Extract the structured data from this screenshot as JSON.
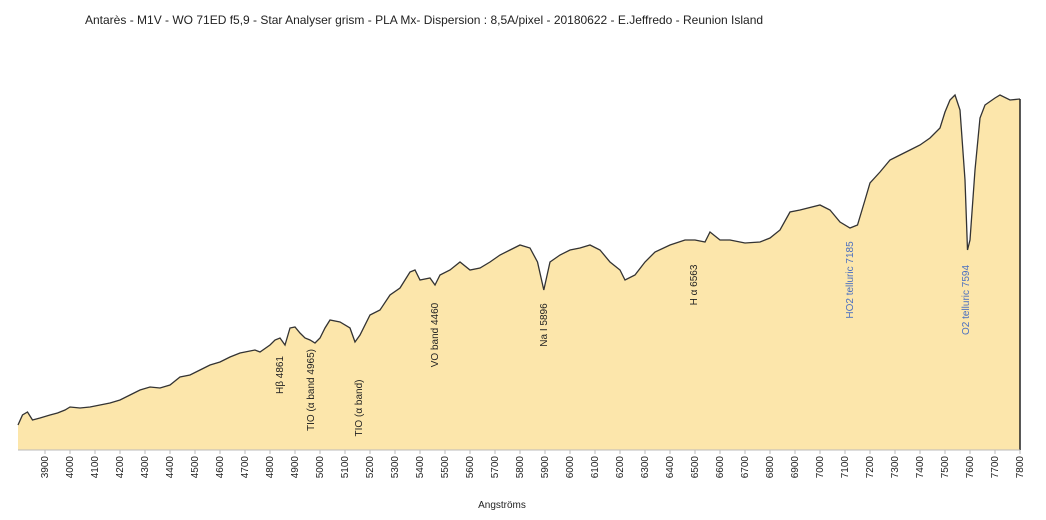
{
  "chart_data": {
    "type": "area",
    "title": "Antarès - M1V - WO 71ED  f5,9 - Star Analyser grism - PLA Mx- Dispersion : 8,5A/pixel - 20180622 - E.Jeffredo - Reunion Island",
    "x_label": "Angströms",
    "fill": "#fce6ab",
    "line_color": "#333333",
    "x": [
      3792,
      3810,
      3830,
      3850,
      3880,
      3920,
      3950,
      3980,
      4000,
      4040,
      4080,
      4120,
      4160,
      4200,
      4240,
      4280,
      4320,
      4360,
      4400,
      4440,
      4480,
      4520,
      4560,
      4600,
      4640,
      4680,
      4700,
      4740,
      4760,
      4800,
      4820,
      4840,
      4860,
      4880,
      4900,
      4920,
      4940,
      4960,
      4980,
      5000,
      5020,
      5040,
      5080,
      5120,
      5140,
      5160,
      5200,
      5240,
      5280,
      5320,
      5360,
      5380,
      5400,
      5440,
      5460,
      5480,
      5520,
      5560,
      5600,
      5640,
      5680,
      5720,
      5760,
      5800,
      5840,
      5870,
      5895,
      5920,
      5960,
      6000,
      6040,
      6080,
      6120,
      6160,
      6200,
      6220,
      6260,
      6300,
      6340,
      6400,
      6460,
      6500,
      6540,
      6560,
      6600,
      6640,
      6700,
      6760,
      6800,
      6840,
      6880,
      6920,
      7000,
      7040,
      7080,
      7120,
      7150,
      7180,
      7200,
      7240,
      7280,
      7320,
      7360,
      7400,
      7440,
      7480,
      7500,
      7520,
      7540,
      7560,
      7580,
      7590,
      7600,
      7620,
      7640,
      7660,
      7700,
      7720,
      7760,
      7800
    ],
    "values": [
      25,
      35,
      38,
      30,
      32,
      35,
      37,
      40,
      43,
      42,
      43,
      45,
      47,
      50,
      55,
      60,
      63,
      62,
      65,
      73,
      75,
      80,
      85,
      88,
      93,
      97,
      98,
      100,
      98,
      105,
      110,
      112,
      105,
      122,
      123,
      117,
      112,
      110,
      107,
      112,
      122,
      130,
      128,
      122,
      108,
      115,
      135,
      140,
      155,
      162,
      178,
      180,
      170,
      172,
      165,
      175,
      180,
      188,
      180,
      182,
      188,
      195,
      200,
      205,
      202,
      188,
      160,
      188,
      195,
      200,
      202,
      205,
      200,
      188,
      180,
      170,
      175,
      188,
      198,
      205,
      210,
      210,
      208,
      218,
      210,
      210,
      207,
      208,
      212,
      220,
      238,
      240,
      245,
      240,
      228,
      222,
      225,
      250,
      267,
      278,
      290,
      295,
      300,
      305,
      312,
      322,
      338,
      350,
      355,
      340,
      270,
      200,
      210,
      280,
      332,
      345,
      352,
      355,
      350,
      351
    ],
    "xlim": [
      3792,
      7800
    ],
    "ylim": [
      0,
      400
    ],
    "xticks": [
      3900,
      4000,
      4100,
      4200,
      4300,
      4400,
      4500,
      4600,
      4700,
      4800,
      4900,
      5000,
      5100,
      5200,
      5300,
      5400,
      5500,
      5600,
      5700,
      5800,
      5900,
      6000,
      6100,
      6200,
      6300,
      6400,
      6500,
      6600,
      6700,
      6800,
      6900,
      7000,
      7100,
      7200,
      7300,
      7400,
      7500,
      7600,
      7700,
      7800
    ],
    "annotations": [
      {
        "text": "Hβ 4861",
        "color": "#222222"
      },
      {
        "text": "TIO (α band 4965)",
        "color": "#222222"
      },
      {
        "text": "TIO (α band)",
        "color": "#222222"
      },
      {
        "text": "VO band 4460",
        "color": "#222222"
      },
      {
        "text": "Na I 5896",
        "color": "#222222"
      },
      {
        "text": "H α 6563",
        "color": "#222222"
      },
      {
        "text": "HO2 telluric 7185",
        "color": "#4a6fc0"
      },
      {
        "text": "O2 telluric 7594",
        "color": "#4a6fc0"
      }
    ]
  }
}
